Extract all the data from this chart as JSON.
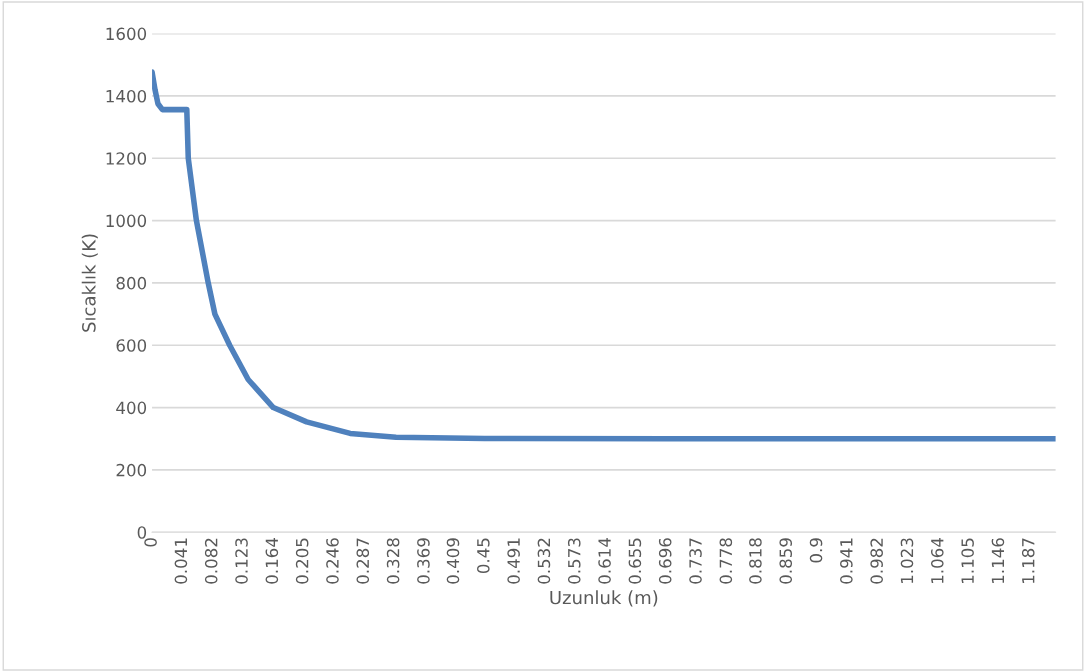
{
  "chart_data": {
    "type": "line",
    "xlabel": "Uzunluk (m)",
    "ylabel": "Sıcaklık (K)",
    "xlim": [
      0,
      1.222
    ],
    "ylim": [
      0,
      1600
    ],
    "yticks": [
      0,
      200,
      400,
      600,
      800,
      1000,
      1200,
      1400,
      1600
    ],
    "xticks": [
      0,
      0.041,
      0.082,
      0.123,
      0.164,
      0.205,
      0.246,
      0.287,
      0.328,
      0.369,
      0.409,
      0.45,
      0.491,
      0.532,
      0.573,
      0.614,
      0.655,
      0.696,
      0.737,
      0.778,
      0.818,
      0.859,
      0.9,
      0.941,
      0.982,
      1.023,
      1.064,
      1.105,
      1.146,
      1.187
    ],
    "grid": "y",
    "legend": false,
    "marker": "none",
    "line_style": "solid",
    "series": [
      {
        "color": "#4f81bd",
        "x": [
          0,
          0.004,
          0.008,
          0.014,
          0.047,
          0.049,
          0.06,
          0.076,
          0.085,
          0.105,
          0.13,
          0.164,
          0.209,
          0.268,
          0.33,
          0.45,
          0.7,
          1.0,
          1.222
        ],
        "values": [
          1477,
          1420,
          1375,
          1356,
          1356,
          1200,
          1000,
          800,
          700,
          600,
          490,
          400,
          354,
          317,
          305,
          301,
          300,
          300,
          300
        ]
      }
    ]
  }
}
